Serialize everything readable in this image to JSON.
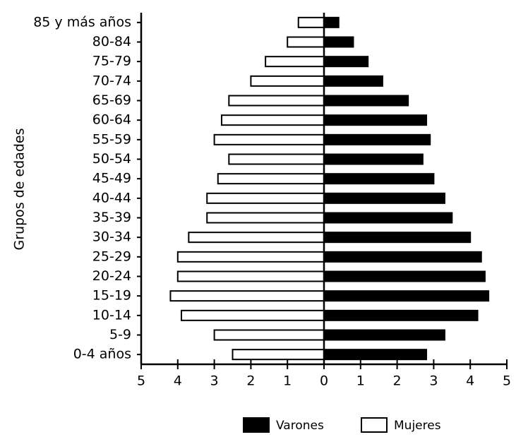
{
  "chart_data": {
    "type": "pyramid",
    "y_label": "Grupos de edades",
    "categories": [
      "85 y más años",
      "80-84",
      "75-79",
      "70-74",
      "65-69",
      "60-64",
      "55-59",
      "50-54",
      "45-49",
      "40-44",
      "35-39",
      "30-34",
      "25-29",
      "20-24",
      "15-19",
      "10-14",
      "5-9",
      "0-4 años"
    ],
    "series": [
      {
        "name": "Varones",
        "color": "#000000",
        "values": [
          0.4,
          0.8,
          1.2,
          1.6,
          2.3,
          2.8,
          2.9,
          2.7,
          3.0,
          3.3,
          3.5,
          4.0,
          4.3,
          4.4,
          4.5,
          4.2,
          3.3,
          2.8
        ]
      },
      {
        "name": "Mujeres",
        "color": "#ffffff",
        "values": [
          -0.7,
          -1.0,
          -1.6,
          -2.0,
          -2.6,
          -2.8,
          -3.0,
          -2.6,
          -2.9,
          -3.2,
          -3.2,
          -3.7,
          -4.0,
          -4.0,
          -4.2,
          -3.9,
          -3.0,
          -2.5
        ]
      }
    ],
    "xlim": [
      -5,
      5
    ],
    "xticks": [
      {
        "value": -5,
        "label": "5"
      },
      {
        "value": -4,
        "label": "4"
      },
      {
        "value": -3,
        "label": "3"
      },
      {
        "value": -2,
        "label": "2"
      },
      {
        "value": -1,
        "label": "1"
      },
      0,
      1,
      2,
      3,
      4,
      5
    ]
  }
}
